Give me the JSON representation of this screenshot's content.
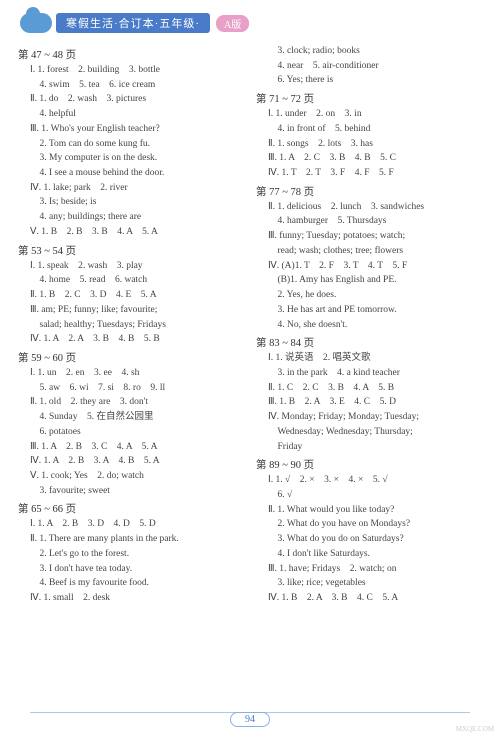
{
  "header": {
    "title": "寒假生活·合订本·五年级·",
    "badge": "A版"
  },
  "left": [
    {
      "t": "s",
      "v": "第 47 ~ 48 页"
    },
    {
      "t": "l",
      "v": "Ⅰ. 1. forest　2. building　3. bottle"
    },
    {
      "t": "l",
      "v": "　4. swim　5. tea　6. ice cream"
    },
    {
      "t": "l",
      "v": "Ⅱ. 1. do　2. wash　3. pictures"
    },
    {
      "t": "l",
      "v": "　4. helpful"
    },
    {
      "t": "l",
      "v": "Ⅲ. 1. Who's your English teacher?"
    },
    {
      "t": "l",
      "v": "　2. Tom can do some kung fu."
    },
    {
      "t": "l",
      "v": "　3. My computer is on the desk."
    },
    {
      "t": "l",
      "v": "　4. I see a mouse behind the door."
    },
    {
      "t": "l",
      "v": "Ⅳ. 1. lake; park　2. river"
    },
    {
      "t": "l",
      "v": "　3. Is; beside; is"
    },
    {
      "t": "l",
      "v": "　4. any; buildings; there are"
    },
    {
      "t": "l",
      "v": "Ⅴ. 1. B　2. B　3. B　4. A　5. A"
    },
    {
      "t": "s",
      "v": "第 53 ~ 54 页"
    },
    {
      "t": "l",
      "v": "Ⅰ. 1. speak　2. wash　3. play"
    },
    {
      "t": "l",
      "v": "　4. home　5. read　6. watch"
    },
    {
      "t": "l",
      "v": "Ⅱ. 1. B　2. C　3. D　4. E　5. A"
    },
    {
      "t": "l",
      "v": "Ⅲ. am; PE; funny; like; favourite;"
    },
    {
      "t": "l",
      "v": "　salad; healthy; Tuesdays; Fridays"
    },
    {
      "t": "l",
      "v": "Ⅳ. 1. A　2. A　3. B　4. B　5. B"
    },
    {
      "t": "s",
      "v": "第 59 ~ 60 页"
    },
    {
      "t": "l",
      "v": "Ⅰ. 1. un　2. en　3. ee　4. sh"
    },
    {
      "t": "l",
      "v": "　5. aw　6. wi　7. si　8. ro　9. ll"
    },
    {
      "t": "l",
      "v": "Ⅱ. 1. old　2. they are　3. don't"
    },
    {
      "t": "l",
      "v": "　4. Sunday　5. 在自然公园里"
    },
    {
      "t": "l",
      "v": "　6. potatoes"
    },
    {
      "t": "l",
      "v": "Ⅲ. 1. A　2. B　3. C　4. A　5. A"
    },
    {
      "t": "l",
      "v": "Ⅳ. 1. A　2. B　3. A　4. B　5. A"
    },
    {
      "t": "l",
      "v": "Ⅴ. 1. cook; Yes　2. do; watch"
    },
    {
      "t": "l",
      "v": "　3. favourite; sweet"
    },
    {
      "t": "s",
      "v": "第 65 ~ 66 页"
    },
    {
      "t": "l",
      "v": "Ⅰ. 1. A　2. B　3. D　4. D　5. D"
    },
    {
      "t": "l",
      "v": "Ⅱ. 1. There are many plants in the park."
    },
    {
      "t": "l",
      "v": "　2. Let's go to the forest."
    },
    {
      "t": "l",
      "v": "　3. I don't have tea today."
    },
    {
      "t": "l",
      "v": "　4. Beef is my favourite food."
    },
    {
      "t": "l",
      "v": "Ⅳ. 1. small　2. desk"
    }
  ],
  "right": [
    {
      "t": "l",
      "v": "　3. clock; radio; books"
    },
    {
      "t": "l",
      "v": "　4. near　5. air-conditioner"
    },
    {
      "t": "l",
      "v": "　6. Yes; there is"
    },
    {
      "t": "s",
      "v": "第 71 ~ 72 页"
    },
    {
      "t": "l",
      "v": "Ⅰ. 1. under　2. on　3. in"
    },
    {
      "t": "l",
      "v": "　4. in front of　5. behind"
    },
    {
      "t": "l",
      "v": "Ⅱ. 1. songs　2. lots　3. has"
    },
    {
      "t": "l",
      "v": "Ⅲ. 1. A　2. C　3. B　4. B　5. C"
    },
    {
      "t": "l",
      "v": "Ⅳ. 1. T　2. T　3. F　4. F　5. F"
    },
    {
      "t": "s",
      "v": "第 77 ~ 78 页"
    },
    {
      "t": "l",
      "v": "Ⅱ. 1. delicious　2. lunch　3. sandwiches"
    },
    {
      "t": "l",
      "v": "　4. hamburger　5. Thursdays"
    },
    {
      "t": "l",
      "v": "Ⅲ. funny; Tuesday; potatoes; watch;"
    },
    {
      "t": "l",
      "v": "　read; wash; clothes; tree; flowers"
    },
    {
      "t": "l",
      "v": "Ⅳ. (A)1. T　2. F　3. T　4. T　5. F"
    },
    {
      "t": "l",
      "v": "　(B)1. Amy has English and PE."
    },
    {
      "t": "l",
      "v": "　2. Yes, he does."
    },
    {
      "t": "l",
      "v": "　3. He has art and PE tomorrow."
    },
    {
      "t": "l",
      "v": "　4. No, she doesn't."
    },
    {
      "t": "s",
      "v": "第 83 ~ 84 页"
    },
    {
      "t": "l",
      "v": "Ⅰ. 1. 说英语　2. 唱英文歌"
    },
    {
      "t": "l",
      "v": "　3. in the park　4. a kind teacher"
    },
    {
      "t": "l",
      "v": "Ⅱ. 1. C　2. C　3. B　4. A　5. B"
    },
    {
      "t": "l",
      "v": "Ⅲ. 1. B　2. A　3. E　4. C　5. D"
    },
    {
      "t": "l",
      "v": "Ⅳ. Monday; Friday; Monday; Tuesday;"
    },
    {
      "t": "l",
      "v": "　Wednesday; Wednesday; Thursday;"
    },
    {
      "t": "l",
      "v": "　Friday"
    },
    {
      "t": "s",
      "v": "第 89 ~ 90 页"
    },
    {
      "t": "l",
      "v": "Ⅰ. 1. √　2. ×　3. ×　4. ×　5. √"
    },
    {
      "t": "l",
      "v": "　6. √"
    },
    {
      "t": "l",
      "v": "Ⅱ. 1. What would you like today?"
    },
    {
      "t": "l",
      "v": "　2. What do you have on Mondays?"
    },
    {
      "t": "l",
      "v": "　3. What do you do on Saturdays?"
    },
    {
      "t": "l",
      "v": "　4. I don't like Saturdays."
    },
    {
      "t": "l",
      "v": "Ⅲ. 1. have; Fridays　2. watch; on"
    },
    {
      "t": "l",
      "v": "　3. like; rice; vegetables"
    },
    {
      "t": "l",
      "v": "Ⅳ. 1. B　2. A　3. B　4. C　5. A"
    }
  ],
  "pagenum": "94",
  "watermark": "MXQE.COM"
}
